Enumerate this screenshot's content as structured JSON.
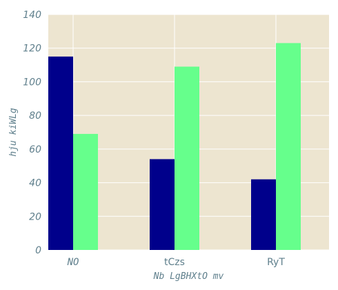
{
  "chart_data": {
    "type": "bar",
    "title": "",
    "xlabel": "Nb LgBHXtO mv",
    "ylabel": "hju kiWLg",
    "categories": [
      "NO",
      "tCzs",
      "RyT"
    ],
    "series": [
      {
        "values": [
          115,
          54,
          42
        ],
        "color": "#00008b"
      },
      {
        "values": [
          69,
          109,
          123
        ],
        "color": "#66ff8c"
      }
    ],
    "ylim": [
      0,
      140
    ],
    "yticks": [
      0,
      20,
      40,
      60,
      80,
      100,
      120,
      140
    ],
    "grid": true,
    "background_color": "#ede5d0",
    "grid_color": "#ffffff",
    "legend": "none"
  }
}
